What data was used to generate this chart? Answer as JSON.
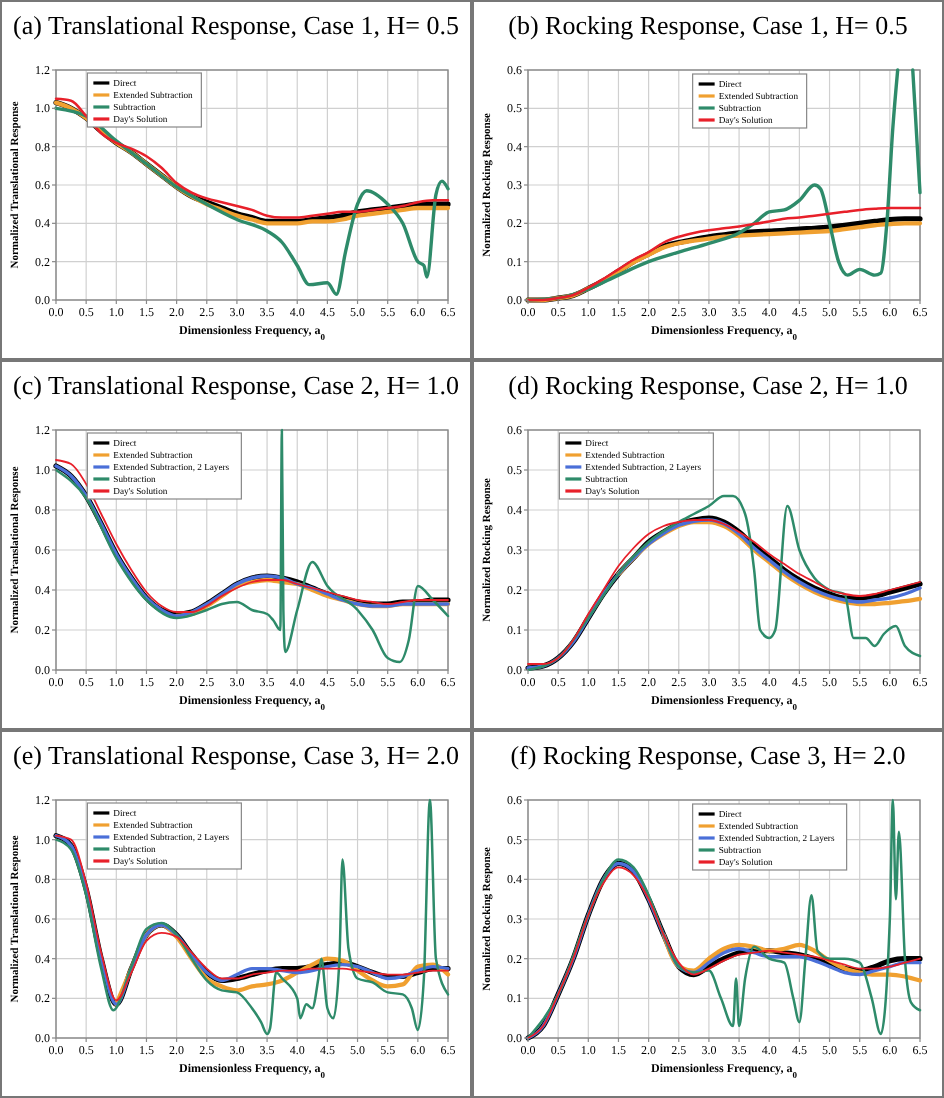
{
  "chart_data": [
    {
      "type": "line",
      "title": "(a)  Translational Response, Case 1, H= 0.5",
      "xlabel": "Dimensionless Frequency, a$_{0}$",
      "ylabel": "Normalized Translational Response",
      "xlim": [
        0,
        6.5
      ],
      "ylim": [
        0,
        1.2
      ],
      "grid": true,
      "legend": "top left",
      "xticks": [
        {
          "value": 0,
          "label": "0.0"
        },
        {
          "value": 0.5,
          "label": "0.5"
        },
        {
          "value": 1,
          "label": "1.0"
        },
        {
          "value": 1.5,
          "label": "1.5"
        },
        {
          "value": 2,
          "label": "2.0"
        },
        {
          "value": 2.5,
          "label": "2.5"
        },
        {
          "value": 3,
          "label": "3.0"
        },
        {
          "value": 3.5,
          "label": "3.5"
        },
        {
          "value": 4,
          "label": "4.0"
        },
        {
          "value": 4.5,
          "label": "4.5"
        },
        {
          "value": 5,
          "label": "5.0"
        },
        {
          "value": 5.5,
          "label": "5.5"
        },
        {
          "value": 6,
          "label": "6.0"
        },
        {
          "value": 6.5,
          "label": "6.5"
        }
      ],
      "yticks": [
        {
          "value": 0,
          "label": "0.0"
        },
        {
          "value": 0.2,
          "label": "0.2"
        },
        {
          "value": 0.4,
          "label": "0.4"
        },
        {
          "value": 0.6,
          "label": "0.6"
        },
        {
          "value": 0.8,
          "label": "0.8"
        },
        {
          "value": 1,
          "label": "1.0"
        },
        {
          "value": 1.2,
          "label": "1.2"
        }
      ],
      "x": [
        0,
        0.25,
        0.5,
        0.75,
        1,
        1.25,
        1.5,
        1.75,
        2,
        2.25,
        2.5,
        2.75,
        3,
        3.25,
        3.5,
        3.75,
        4,
        4.25,
        4.5,
        4.75,
        5,
        5.25,
        5.5,
        5.75,
        6,
        6.25,
        6.5
      ],
      "series": [
        {
          "name": "Direct",
          "color": "#000000",
          "values": [
            1.03,
            1.0,
            0.95,
            0.88,
            0.82,
            0.77,
            0.71,
            0.65,
            0.59,
            0.54,
            0.51,
            0.48,
            0.45,
            0.43,
            0.41,
            0.41,
            0.41,
            0.42,
            0.43,
            0.44,
            0.46,
            0.47,
            0.48,
            0.49,
            0.5,
            0.5,
            0.5
          ]
        },
        {
          "name": "Extended Subtraction",
          "color": "#f0a030",
          "values": [
            1.03,
            1.0,
            0.95,
            0.88,
            0.82,
            0.77,
            0.71,
            0.65,
            0.59,
            0.54,
            0.5,
            0.47,
            0.44,
            0.42,
            0.4,
            0.4,
            0.4,
            0.41,
            0.41,
            0.42,
            0.44,
            0.45,
            0.46,
            0.47,
            0.48,
            0.48,
            0.48
          ]
        },
        {
          "name": "Subtraction",
          "color": "#2e8b6a",
          "x": [
            0,
            0.5,
            1,
            1.5,
            2,
            2.5,
            3,
            3.5,
            3.75,
            4,
            4.2,
            4.5,
            4.65,
            4.8,
            5,
            5.15,
            5.5,
            5.75,
            6,
            6.1,
            6.15,
            6.3,
            6.4,
            6.5
          ],
          "values": [
            1.0,
            0.96,
            0.83,
            0.71,
            0.59,
            0.5,
            0.42,
            0.36,
            0.3,
            0.18,
            0.08,
            0.09,
            0.03,
            0.25,
            0.5,
            0.57,
            0.5,
            0.4,
            0.2,
            0.18,
            0.12,
            0.55,
            0.62,
            0.58
          ]
        },
        {
          "name": "Day's Solution",
          "color": "#e8202a",
          "values": [
            1.05,
            1.04,
            0.96,
            0.87,
            0.82,
            0.79,
            0.75,
            0.69,
            0.61,
            0.56,
            0.53,
            0.51,
            0.49,
            0.47,
            0.44,
            0.43,
            0.43,
            0.44,
            0.45,
            0.46,
            0.46,
            0.47,
            0.48,
            0.49,
            0.51,
            0.52,
            0.52
          ]
        }
      ]
    },
    {
      "type": "line",
      "title": "(b)  Rocking Response, Case 1, H= 0.5",
      "xlabel": "Dimensionless Frequency, a$_{0}$",
      "ylabel": "Normalized Rocking Response",
      "xlim": [
        0,
        6.5
      ],
      "ylim": [
        0,
        0.6
      ],
      "grid": true,
      "legend": "top",
      "xticks": [
        {
          "value": 0,
          "label": "0.0"
        },
        {
          "value": 0.5,
          "label": "0.5"
        },
        {
          "value": 1,
          "label": "1.0"
        },
        {
          "value": 1.5,
          "label": "1.5"
        },
        {
          "value": 2,
          "label": "2.0"
        },
        {
          "value": 2.5,
          "label": "2.5"
        },
        {
          "value": 3,
          "label": "3.0"
        },
        {
          "value": 3.5,
          "label": "3.5"
        },
        {
          "value": 4,
          "label": "4.0"
        },
        {
          "value": 4.5,
          "label": "4.5"
        },
        {
          "value": 5,
          "label": "5.0"
        },
        {
          "value": 5.5,
          "label": "5.5"
        },
        {
          "value": 6,
          "label": "6.0"
        },
        {
          "value": 6.5,
          "label": "6.5"
        }
      ],
      "yticks": [
        {
          "value": 0,
          "label": "0.0"
        },
        {
          "value": 0.1,
          "label": "0.1"
        },
        {
          "value": 0.2,
          "label": "0.2"
        },
        {
          "value": 0.3,
          "label": "0.3"
        },
        {
          "value": 0.4,
          "label": "0.4"
        },
        {
          "value": 0.5,
          "label": "0.5"
        },
        {
          "value": 0.6,
          "label": "0.6"
        }
      ],
      "x": [
        0,
        0.25,
        0.5,
        0.75,
        1,
        1.25,
        1.5,
        1.75,
        2,
        2.25,
        2.5,
        2.75,
        3,
        3.25,
        3.5,
        3.75,
        4,
        4.25,
        4.5,
        4.75,
        5,
        5.25,
        5.5,
        5.75,
        6,
        6.25,
        6.5
      ],
      "series": [
        {
          "name": "Direct",
          "color": "#000000",
          "values": [
            0,
            0,
            0.005,
            0.012,
            0.03,
            0.05,
            0.075,
            0.1,
            0.12,
            0.14,
            0.15,
            0.158,
            0.165,
            0.17,
            0.175,
            0.178,
            0.18,
            0.182,
            0.185,
            0.187,
            0.19,
            0.195,
            0.2,
            0.205,
            0.21,
            0.212,
            0.212
          ]
        },
        {
          "name": "Extended Subtraction",
          "color": "#f0a030",
          "values": [
            0,
            0,
            0.005,
            0.012,
            0.03,
            0.05,
            0.074,
            0.098,
            0.118,
            0.137,
            0.148,
            0.155,
            0.16,
            0.165,
            0.168,
            0.17,
            0.172,
            0.174,
            0.176,
            0.178,
            0.18,
            0.185,
            0.19,
            0.195,
            0.198,
            0.2,
            0.2
          ]
        },
        {
          "name": "Subtraction",
          "color": "#2e8b6a",
          "x": [
            0,
            0.5,
            1,
            1.5,
            2,
            2.5,
            3,
            3.5,
            3.75,
            4,
            4.25,
            4.5,
            4.75,
            4.85,
            5,
            5.15,
            5.3,
            5.5,
            5.75,
            5.85,
            5.95,
            6.05,
            6.13,
            6.25,
            6.38,
            6.5
          ],
          "values": [
            0,
            0.005,
            0.028,
            0.065,
            0.1,
            0.125,
            0.148,
            0.175,
            0.2,
            0.23,
            0.235,
            0.26,
            0.3,
            0.29,
            0.2,
            0.1,
            0.065,
            0.08,
            0.065,
            0.07,
            0.2,
            0.45,
            0.6,
            null,
            0.6,
            0.28
          ]
        },
        {
          "name": "Day's Solution",
          "color": "#e8202a",
          "values": [
            0,
            0,
            0.005,
            0.013,
            0.032,
            0.055,
            0.08,
            0.105,
            0.125,
            0.15,
            0.165,
            0.175,
            0.182,
            0.187,
            0.192,
            0.198,
            0.205,
            0.212,
            0.215,
            0.22,
            0.225,
            0.23,
            0.235,
            0.238,
            0.24,
            0.24,
            0.24
          ]
        }
      ]
    },
    {
      "type": "line",
      "title": "(c)  Translational Response, Case 2, H= 1.0",
      "xlabel": "Dimensionless Frequency, a$_{0}$",
      "ylabel": "Normalized Translational Response",
      "xlim": [
        0,
        6.5
      ],
      "ylim": [
        0,
        1.2
      ],
      "grid": true,
      "legend": "top left",
      "xticks": [
        {
          "value": 0,
          "label": "0.0"
        },
        {
          "value": 0.5,
          "label": "0.5"
        },
        {
          "value": 1,
          "label": "1.0"
        },
        {
          "value": 1.5,
          "label": "1.5"
        },
        {
          "value": 2,
          "label": "2.0"
        },
        {
          "value": 2.5,
          "label": "2.5"
        },
        {
          "value": 3,
          "label": "3.0"
        },
        {
          "value": 3.5,
          "label": "3.5"
        },
        {
          "value": 4,
          "label": "4.0"
        },
        {
          "value": 4.5,
          "label": "4.5"
        },
        {
          "value": 5,
          "label": "5.0"
        },
        {
          "value": 5.5,
          "label": "5.5"
        },
        {
          "value": 6,
          "label": "6.0"
        },
        {
          "value": 6.5,
          "label": "6.5"
        }
      ],
      "yticks": [
        {
          "value": 0,
          "label": "0.0"
        },
        {
          "value": 0.2,
          "label": "0.2"
        },
        {
          "value": 0.4,
          "label": "0.4"
        },
        {
          "value": 0.6,
          "label": "0.6"
        },
        {
          "value": 0.8,
          "label": "0.8"
        },
        {
          "value": 1,
          "label": "1.0"
        },
        {
          "value": 1.2,
          "label": "1.2"
        }
      ],
      "x": [
        0,
        0.25,
        0.5,
        0.75,
        1,
        1.25,
        1.5,
        1.75,
        2,
        2.25,
        2.5,
        2.75,
        3,
        3.25,
        3.5,
        3.75,
        4,
        4.25,
        4.5,
        4.75,
        5,
        5.25,
        5.5,
        5.75,
        6,
        6.25,
        6.5
      ],
      "series": [
        {
          "name": "Direct",
          "color": "#000000",
          "values": [
            1.02,
            0.97,
            0.87,
            0.73,
            0.58,
            0.46,
            0.36,
            0.3,
            0.28,
            0.29,
            0.33,
            0.38,
            0.43,
            0.46,
            0.47,
            0.46,
            0.44,
            0.41,
            0.38,
            0.36,
            0.34,
            0.33,
            0.33,
            0.34,
            0.34,
            0.35,
            0.35
          ]
        },
        {
          "name": "Extended Subtraction",
          "color": "#f0a030",
          "values": [
            null,
            null,
            null,
            null,
            null,
            null,
            null,
            null,
            0.27,
            0.28,
            0.32,
            0.37,
            0.42,
            0.44,
            0.45,
            0.44,
            0.43,
            0.4,
            0.37,
            0.35,
            0.33,
            0.32,
            0.32,
            0.33,
            0.33,
            0.33,
            0.33
          ]
        },
        {
          "name": "Extended Subtraction, 2 Layers",
          "color": "#4a6fd8",
          "values": [
            1.02,
            0.97,
            0.87,
            0.73,
            0.58,
            0.46,
            0.36,
            0.3,
            0.27,
            0.29,
            0.33,
            0.38,
            0.43,
            0.46,
            0.47,
            0.46,
            0.43,
            0.41,
            0.38,
            0.35,
            0.33,
            0.32,
            0.32,
            0.33,
            0.33,
            0.33,
            0.33
          ]
        },
        {
          "name": "Subtraction",
          "color": "#2e8b6a",
          "x": [
            0,
            0.5,
            1,
            1.5,
            2,
            2.5,
            2.75,
            3,
            3.25,
            3.5,
            3.6,
            3.72,
            3.745,
            3.77,
            3.8,
            4,
            4.25,
            4.5,
            5,
            5.25,
            5.5,
            5.7,
            5.85,
            6,
            6.25,
            6.5
          ],
          "values": [
            1.0,
            0.86,
            0.56,
            0.35,
            0.26,
            0.3,
            0.33,
            0.34,
            0.3,
            0.28,
            0.25,
            0.2,
            1.2,
            0.3,
            0.09,
            0.3,
            0.54,
            0.42,
            0.3,
            0.2,
            0.06,
            0.04,
            0.15,
            0.42,
            0.35,
            0.27
          ]
        },
        {
          "name": "Day's Solution",
          "color": "#e8202a",
          "values": [
            1.05,
            1.03,
            0.93,
            0.78,
            0.63,
            0.5,
            0.39,
            0.32,
            0.29,
            0.29,
            0.32,
            0.37,
            0.41,
            0.44,
            0.45,
            0.45,
            0.43,
            0.41,
            0.39,
            0.37,
            0.35,
            0.34,
            0.33,
            0.34,
            0.35,
            0.35,
            0.35
          ]
        }
      ]
    },
    {
      "type": "line",
      "title": "(d)  Rocking Response, Case 2, H= 1.0",
      "xlabel": "Dimensionless Frequency, a$_{0}$",
      "ylabel": "Normalized Rocking Response",
      "xlim": [
        0,
        6.5
      ],
      "ylim": [
        0,
        0.6
      ],
      "grid": true,
      "legend": "top left",
      "xticks": [
        {
          "value": 0,
          "label": "0.0"
        },
        {
          "value": 0.5,
          "label": "0.5"
        },
        {
          "value": 1,
          "label": "1.0"
        },
        {
          "value": 1.5,
          "label": "1.5"
        },
        {
          "value": 2,
          "label": "2.0"
        },
        {
          "value": 2.5,
          "label": "2.5"
        },
        {
          "value": 3,
          "label": "3.0"
        },
        {
          "value": 3.5,
          "label": "3.5"
        },
        {
          "value": 4,
          "label": "4.0"
        },
        {
          "value": 4.5,
          "label": "4.5"
        },
        {
          "value": 5,
          "label": "5.0"
        },
        {
          "value": 5.5,
          "label": "5.5"
        },
        {
          "value": 6,
          "label": "6.0"
        },
        {
          "value": 6.5,
          "label": "6.5"
        }
      ],
      "yticks": [
        {
          "value": 0,
          "label": "0.0"
        },
        {
          "value": 0.1,
          "label": "0.1"
        },
        {
          "value": 0.2,
          "label": "0.2"
        },
        {
          "value": 0.3,
          "label": "0.3"
        },
        {
          "value": 0.4,
          "label": "0.4"
        },
        {
          "value": 0.5,
          "label": "0.5"
        },
        {
          "value": 0.6,
          "label": "0.6"
        }
      ],
      "x": [
        0,
        0.25,
        0.5,
        0.75,
        1,
        1.25,
        1.5,
        1.75,
        2,
        2.25,
        2.5,
        2.75,
        3,
        3.25,
        3.5,
        3.75,
        4,
        4.25,
        4.5,
        4.75,
        5,
        5.25,
        5.5,
        5.75,
        6,
        6.25,
        6.5
      ],
      "series": [
        {
          "name": "Direct",
          "color": "#000000",
          "values": [
            0.005,
            0.01,
            0.03,
            0.07,
            0.13,
            0.19,
            0.24,
            0.28,
            0.32,
            0.345,
            0.365,
            0.375,
            0.38,
            0.37,
            0.345,
            0.31,
            0.28,
            0.25,
            0.225,
            0.205,
            0.19,
            0.18,
            0.18,
            0.185,
            0.195,
            0.205,
            0.215
          ]
        },
        {
          "name": "Extended Subtraction",
          "color": "#f0a030",
          "values": [
            null,
            null,
            null,
            null,
            null,
            null,
            0.24,
            0.28,
            0.315,
            0.34,
            0.36,
            0.37,
            0.37,
            0.36,
            0.335,
            0.3,
            0.27,
            0.24,
            0.215,
            0.195,
            0.18,
            0.17,
            0.165,
            0.165,
            0.168,
            0.172,
            0.178
          ]
        },
        {
          "name": "Extended Subtraction, 2 Layers",
          "color": "#4a6fd8",
          "values": [
            0.005,
            0.01,
            0.03,
            0.07,
            0.13,
            0.19,
            0.24,
            0.28,
            0.315,
            0.342,
            0.362,
            0.372,
            0.375,
            0.365,
            0.34,
            0.305,
            0.275,
            0.245,
            0.22,
            0.2,
            0.185,
            0.175,
            0.17,
            0.175,
            0.18,
            0.19,
            0.205
          ]
        },
        {
          "name": "Subtraction",
          "color": "#2e8b6a",
          "x": [
            0,
            0.5,
            1,
            1.5,
            2,
            2.5,
            2.75,
            3,
            3.25,
            3.4,
            3.6,
            3.75,
            3.85,
            4,
            4.1,
            4.3,
            4.5,
            4.75,
            5,
            5.25,
            5.4,
            5.6,
            5.75,
            5.9,
            6.1,
            6.25,
            6.5
          ],
          "values": [
            0,
            0.03,
            0.13,
            0.24,
            0.32,
            0.37,
            0.39,
            0.41,
            0.435,
            0.435,
            0.39,
            0.25,
            0.1,
            0.08,
            0.1,
            0.41,
            0.3,
            0.23,
            0.2,
            0.19,
            0.08,
            0.08,
            0.06,
            0.09,
            0.11,
            0.06,
            0.035
          ]
        },
        {
          "name": "Day's Solution",
          "color": "#e8202a",
          "values": [
            0.015,
            0.015,
            0.03,
            0.075,
            0.14,
            0.2,
            0.26,
            0.305,
            0.34,
            0.36,
            0.37,
            0.375,
            0.375,
            0.365,
            0.345,
            0.32,
            0.29,
            0.265,
            0.24,
            0.22,
            0.2,
            0.19,
            0.185,
            0.19,
            0.2,
            0.21,
            0.22
          ]
        }
      ]
    },
    {
      "type": "line",
      "title": "(e)  Translational Response, Case 3, H= 2.0",
      "xlabel": "Dimensionless Frequency, a$_{0}$",
      "ylabel": "Normalized Translational Response",
      "xlim": [
        0,
        6.5
      ],
      "ylim": [
        0,
        1.2
      ],
      "grid": true,
      "legend": "top left",
      "xticks": [
        {
          "value": 0,
          "label": "0.0"
        },
        {
          "value": 0.5,
          "label": "0.5"
        },
        {
          "value": 1,
          "label": "1.0"
        },
        {
          "value": 1.5,
          "label": "1.5"
        },
        {
          "value": 2,
          "label": "2.0"
        },
        {
          "value": 2.5,
          "label": "2.5"
        },
        {
          "value": 3,
          "label": "3.0"
        },
        {
          "value": 3.5,
          "label": "3.5"
        },
        {
          "value": 4,
          "label": "4.0"
        },
        {
          "value": 4.5,
          "label": "4.5"
        },
        {
          "value": 5,
          "label": "5.0"
        },
        {
          "value": 5.5,
          "label": "5.5"
        },
        {
          "value": 6,
          "label": "6.0"
        },
        {
          "value": 6.5,
          "label": "6.5"
        }
      ],
      "yticks": [
        {
          "value": 0,
          "label": "0.0"
        },
        {
          "value": 0.2,
          "label": "0.2"
        },
        {
          "value": 0.4,
          "label": "0.4"
        },
        {
          "value": 0.6,
          "label": "0.6"
        },
        {
          "value": 0.8,
          "label": "0.8"
        },
        {
          "value": 1,
          "label": "1.0"
        },
        {
          "value": 1.2,
          "label": "1.2"
        }
      ],
      "x": [
        0,
        0.25,
        0.5,
        0.75,
        1,
        1.25,
        1.5,
        1.75,
        2,
        2.25,
        2.5,
        2.75,
        3,
        3.25,
        3.5,
        3.75,
        4,
        4.25,
        4.5,
        4.75,
        5,
        5.25,
        5.5,
        5.75,
        6,
        6.25,
        6.5
      ],
      "series": [
        {
          "name": "Direct",
          "color": "#000000",
          "values": [
            1.02,
            0.97,
            0.75,
            0.4,
            0.17,
            0.35,
            0.52,
            0.57,
            0.52,
            0.42,
            0.33,
            0.29,
            0.3,
            0.32,
            0.34,
            0.35,
            0.35,
            0.36,
            0.37,
            0.38,
            0.36,
            0.33,
            0.31,
            0.31,
            0.33,
            0.35,
            0.35
          ]
        },
        {
          "name": "Extended Subtraction",
          "color": "#f0a030",
          "values": [
            null,
            null,
            null,
            null,
            0.17,
            0.35,
            0.52,
            0.57,
            0.51,
            0.4,
            0.3,
            0.26,
            0.24,
            0.26,
            0.27,
            0.29,
            0.33,
            0.37,
            0.4,
            0.39,
            0.34,
            0.29,
            0.26,
            0.27,
            0.36,
            0.37,
            0.32
          ]
        },
        {
          "name": "Extended Subtraction, 2 Layers",
          "color": "#4a6fd8",
          "values": [
            1.02,
            0.97,
            0.75,
            0.4,
            0.17,
            0.35,
            0.52,
            0.57,
            0.52,
            0.42,
            0.33,
            0.29,
            0.32,
            0.35,
            0.35,
            0.34,
            0.33,
            0.34,
            0.36,
            0.37,
            0.36,
            0.33,
            0.3,
            0.31,
            0.34,
            0.36,
            0.35
          ]
        },
        {
          "name": "Subtraction",
          "color": "#2e8b6a",
          "x": [
            0,
            0.25,
            0.5,
            0.75,
            0.95,
            1.25,
            1.5,
            1.75,
            2,
            2.25,
            2.5,
            2.75,
            3,
            3.25,
            3.4,
            3.5,
            3.55,
            3.65,
            3.75,
            4,
            4.05,
            4.15,
            4.25,
            4.35,
            4.4,
            4.5,
            4.6,
            4.7,
            4.75,
            4.85,
            5,
            5.25,
            5.5,
            5.75,
            5.9,
            6,
            6.1,
            6.2,
            6.3,
            6.5
          ],
          "values": [
            1.0,
            0.95,
            0.72,
            0.35,
            0.14,
            0.36,
            0.55,
            0.58,
            0.52,
            0.4,
            0.29,
            0.24,
            0.23,
            0.15,
            0.08,
            0.02,
            0.05,
            0.33,
            0.3,
            0.2,
            0.1,
            0.17,
            0.15,
            0.3,
            0.4,
            0.15,
            0.1,
            0.4,
            0.9,
            0.45,
            0.3,
            0.28,
            0.23,
            0.22,
            0.15,
            0.04,
            0.3,
            1.2,
            0.4,
            0.22
          ]
        },
        {
          "name": "Day's Solution",
          "color": "#e8202a",
          "values": [
            1.02,
            1.0,
            0.78,
            0.43,
            0.19,
            0.33,
            0.49,
            0.53,
            0.51,
            0.43,
            0.35,
            0.3,
            0.3,
            0.32,
            0.33,
            0.34,
            0.34,
            0.35,
            0.35,
            0.35,
            0.34,
            0.33,
            0.32,
            0.32,
            0.33,
            0.34,
            0.34
          ]
        }
      ]
    },
    {
      "type": "line",
      "title": "(f)  Rocking Response, Case 3, H= 2.0",
      "xlabel": "Dimensionless Frequency, a$_{0}$",
      "ylabel": "Normalized Rocking Response",
      "xlim": [
        0,
        6.5
      ],
      "ylim": [
        0,
        0.6
      ],
      "grid": true,
      "legend": "top",
      "xticks": [
        {
          "value": 0,
          "label": "0.0"
        },
        {
          "value": 0.5,
          "label": "0.5"
        },
        {
          "value": 1,
          "label": "1.0"
        },
        {
          "value": 1.5,
          "label": "1.5"
        },
        {
          "value": 2,
          "label": "2.0"
        },
        {
          "value": 2.5,
          "label": "2.5"
        },
        {
          "value": 3,
          "label": "3.0"
        },
        {
          "value": 3.5,
          "label": "3.5"
        },
        {
          "value": 4,
          "label": "4.0"
        },
        {
          "value": 4.5,
          "label": "4.5"
        },
        {
          "value": 5,
          "label": "5.0"
        },
        {
          "value": 5.5,
          "label": "5.5"
        },
        {
          "value": 6,
          "label": "6.0"
        },
        {
          "value": 6.5,
          "label": "6.5"
        }
      ],
      "yticks": [
        {
          "value": 0,
          "label": "0.0"
        },
        {
          "value": 0.1,
          "label": "0.1"
        },
        {
          "value": 0.2,
          "label": "0.2"
        },
        {
          "value": 0.3,
          "label": "0.3"
        },
        {
          "value": 0.4,
          "label": "0.4"
        },
        {
          "value": 0.5,
          "label": "0.5"
        },
        {
          "value": 0.6,
          "label": "0.6"
        }
      ],
      "x": [
        0,
        0.25,
        0.5,
        0.75,
        1,
        1.25,
        1.5,
        1.75,
        2,
        2.25,
        2.5,
        2.75,
        3,
        3.25,
        3.5,
        3.75,
        4,
        4.25,
        4.5,
        4.75,
        5,
        5.25,
        5.5,
        5.75,
        6,
        6.25,
        6.5
      ],
      "series": [
        {
          "name": "Direct",
          "color": "#000000",
          "values": [
            0,
            0.03,
            0.11,
            0.2,
            0.31,
            0.4,
            0.44,
            0.42,
            0.35,
            0.26,
            0.18,
            0.16,
            0.18,
            0.2,
            0.215,
            0.22,
            0.22,
            0.215,
            0.21,
            0.2,
            0.185,
            0.175,
            0.17,
            0.18,
            0.195,
            0.2,
            0.2
          ]
        },
        {
          "name": "Extended Subtraction",
          "color": "#f0a030",
          "values": [
            null,
            null,
            null,
            null,
            null,
            null,
            null,
            null,
            null,
            0.26,
            0.18,
            0.17,
            0.2,
            0.225,
            0.235,
            0.23,
            0.22,
            0.225,
            0.235,
            0.22,
            0.195,
            0.175,
            0.165,
            0.16,
            0.16,
            0.155,
            0.145
          ]
        },
        {
          "name": "Extended Subtraction, 2 Layers",
          "color": "#4a6fd8",
          "values": [
            0,
            0.03,
            0.11,
            0.2,
            0.31,
            0.4,
            0.44,
            0.42,
            0.35,
            0.26,
            0.18,
            0.165,
            0.19,
            0.215,
            0.225,
            0.215,
            0.205,
            0.205,
            0.205,
            0.195,
            0.18,
            0.165,
            0.16,
            0.17,
            0.18,
            0.19,
            0.19
          ]
        },
        {
          "name": "Subtraction",
          "color": "#2e8b6a",
          "x": [
            0,
            0.5,
            1,
            1.25,
            1.5,
            1.75,
            2,
            2.25,
            2.5,
            2.75,
            3,
            3.2,
            3.4,
            3.45,
            3.5,
            3.6,
            3.75,
            4,
            4.25,
            4.4,
            4.5,
            4.6,
            4.7,
            4.8,
            5,
            5.25,
            5.5,
            5.7,
            5.85,
            6,
            6.05,
            6.1,
            6.15,
            6.25,
            6.35,
            6.5
          ],
          "values": [
            0,
            0.11,
            0.31,
            0.4,
            0.45,
            0.43,
            0.36,
            0.26,
            0.18,
            0.165,
            0.17,
            0.1,
            0.03,
            0.15,
            0.03,
            0.15,
            0.23,
            0.2,
            0.19,
            0.1,
            0.04,
            0.2,
            0.36,
            0.22,
            0.2,
            0.2,
            0.19,
            0.1,
            0.01,
            0.3,
            0.6,
            0.35,
            0.52,
            0.2,
            0.09,
            0.07
          ]
        },
        {
          "name": "Day's Solution",
          "color": "#e8202a",
          "values": [
            0,
            0.03,
            0.11,
            0.2,
            0.31,
            0.39,
            0.43,
            0.41,
            0.35,
            0.26,
            0.19,
            0.16,
            0.175,
            0.195,
            0.21,
            0.215,
            0.22,
            0.215,
            0.21,
            0.205,
            0.195,
            0.185,
            0.175,
            0.175,
            0.18,
            0.19,
            0.2
          ]
        }
      ]
    }
  ]
}
